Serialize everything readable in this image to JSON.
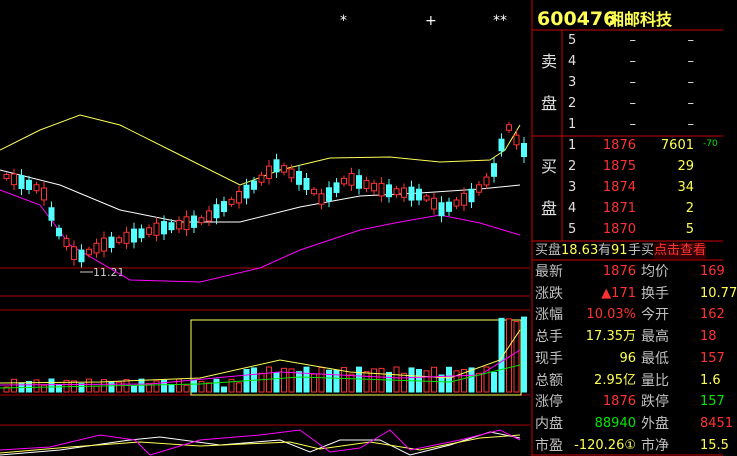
{
  "header": {
    "code": "600476",
    "name": "湘邮科技"
  },
  "chart": {
    "marks": [
      "*",
      "+",
      "**"
    ],
    "low_label": "11.21"
  },
  "ask": {
    "label": [
      "卖",
      "盘"
    ],
    "levels": [
      {
        "level": "5",
        "price": "–",
        "volume": "–"
      },
      {
        "level": "4",
        "price": "–",
        "volume": "–"
      },
      {
        "level": "3",
        "price": "–",
        "volume": "–"
      },
      {
        "level": "2",
        "price": "–",
        "volume": "–"
      },
      {
        "level": "1",
        "price": "–",
        "volume": "–"
      }
    ]
  },
  "bid": {
    "label": [
      "买",
      "盘"
    ],
    "levels": [
      {
        "level": "1",
        "price": "1876",
        "volume": "7601",
        "extra": "-70"
      },
      {
        "level": "2",
        "price": "1875",
        "volume": "29"
      },
      {
        "level": "3",
        "price": "1874",
        "volume": "34"
      },
      {
        "level": "4",
        "price": "1871",
        "volume": "2"
      },
      {
        "level": "5",
        "price": "1870",
        "volume": "5"
      }
    ]
  },
  "summary": {
    "parts": [
      "买盘",
      "18.63",
      "有",
      "91",
      "手买"
    ],
    "link": "点击查看"
  },
  "quote": {
    "rows": [
      [
        "最新",
        "1876",
        "均价",
        "169"
      ],
      [
        "涨跌",
        "▲171",
        "换手",
        "10.77"
      ],
      [
        "涨幅",
        "10.03%",
        "今开",
        "162"
      ],
      [
        "总手",
        "17.35万",
        "最高",
        "18"
      ],
      [
        "现手",
        "96",
        "最低",
        "157"
      ],
      [
        "总额",
        "2.95亿",
        "量比",
        "1.6"
      ],
      [
        "涨停",
        "1876",
        "跌停",
        "157"
      ],
      [
        "内盘",
        "88940",
        "外盘",
        "8451"
      ],
      [
        "市盈",
        "-120.26①",
        "市净",
        "15.5"
      ]
    ]
  }
}
